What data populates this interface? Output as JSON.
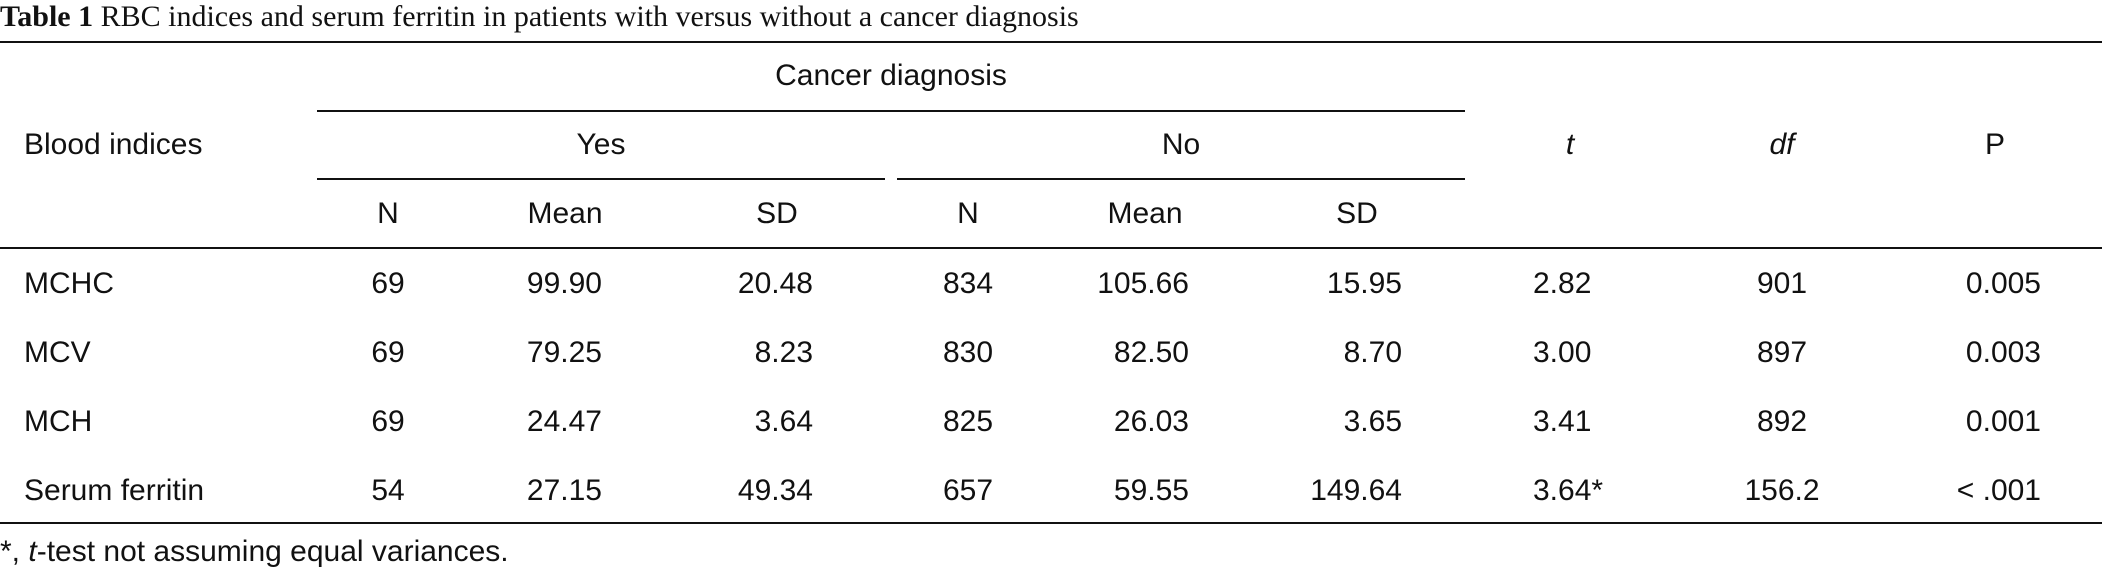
{
  "caption": {
    "label": "Table 1",
    "text": "RBC indices and serum ferritin in patients with versus without a cancer diagnosis"
  },
  "header": {
    "row_label": "Blood indices",
    "group_title": "Cancer diagnosis",
    "group_yes": "Yes",
    "group_no": "No",
    "n": "N",
    "mean": "Mean",
    "sd": "SD",
    "t": "t",
    "df": "df",
    "p": "P"
  },
  "rows": [
    {
      "index": "MCHC",
      "yes_n": "69",
      "yes_mean": "99.90",
      "yes_sd": "20.48",
      "no_n": "834",
      "no_mean": "105.66",
      "no_sd": "15.95",
      "t": "2.82",
      "df": "901",
      "p": "0.005"
    },
    {
      "index": "MCV",
      "yes_n": "69",
      "yes_mean": "79.25",
      "yes_sd": "8.23",
      "no_n": "830",
      "no_mean": "82.50",
      "no_sd": "8.70",
      "t": "3.00",
      "df": "897",
      "p": "0.003"
    },
    {
      "index": "MCH",
      "yes_n": "69",
      "yes_mean": "24.47",
      "yes_sd": "3.64",
      "no_n": "825",
      "no_mean": "26.03",
      "no_sd": "3.65",
      "t": "3.41",
      "df": "892",
      "p": "0.001"
    },
    {
      "index": "Serum ferritin",
      "yes_n": "54",
      "yes_mean": "27.15",
      "yes_sd": "49.34",
      "no_n": "657",
      "no_mean": "59.55",
      "no_sd": "149.64",
      "t": "3.64*",
      "df": "156.2",
      "p": "< .001"
    }
  ],
  "footnote": {
    "prefix": "*, ",
    "italic": "t",
    "suffix": "-test not assuming equal variances."
  }
}
